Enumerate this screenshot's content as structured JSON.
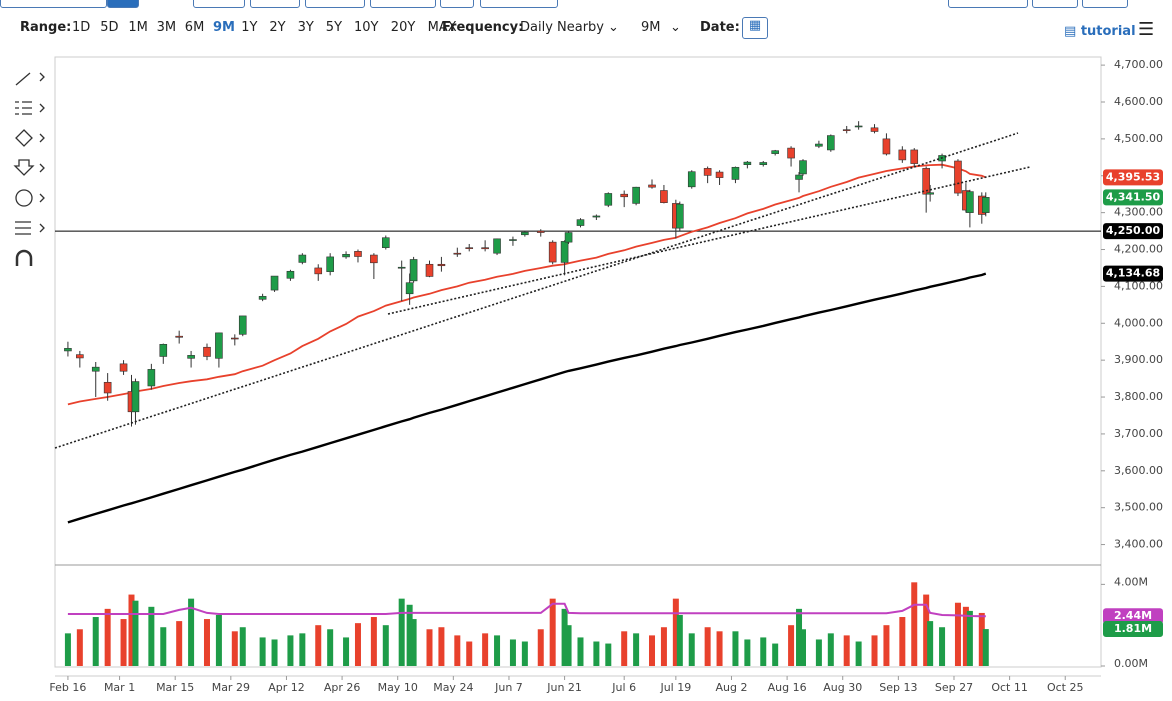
{
  "toolbar": {
    "range_label": "Range:",
    "ranges": [
      "1D",
      "5D",
      "1M",
      "3M",
      "6M",
      "9M",
      "1Y",
      "2Y",
      "3Y",
      "5Y",
      "10Y",
      "20Y",
      "MAX"
    ],
    "active_range": 5,
    "frequency_label": "Frequency:",
    "frequency": "Daily Nearby",
    "period": "9M",
    "date_label": "Date:",
    "tutorial": "tutorial"
  },
  "chart_data": {
    "type": "candlestick",
    "x": [
      "Feb 16",
      "Feb 19",
      "Feb 23",
      "Feb 26",
      "Mar 2",
      "Mar 4",
      "Mar 5",
      "Mar 9",
      "Mar 12",
      "Mar 16",
      "Mar 19",
      "Mar 23",
      "Mar 26",
      "Mar 30",
      "Apr 1",
      "Apr 6",
      "Apr 9",
      "Apr 13",
      "Apr 16",
      "Apr 20",
      "Apr 23",
      "Apr 27",
      "Apr 30",
      "May 4",
      "May 7",
      "May 11",
      "May 13",
      "May 14",
      "May 18",
      "May 21",
      "May 25",
      "May 28",
      "Jun 1",
      "Jun 4",
      "Jun 8",
      "Jun 11",
      "Jun 15",
      "Jun 18",
      "Jun 21",
      "Jun 22",
      "Jun 25",
      "Jun 29",
      "Jul 2",
      "Jul 6",
      "Jul 9",
      "Jul 13",
      "Jul 16",
      "Jul 19",
      "Jul 20",
      "Jul 23",
      "Jul 27",
      "Jul 30",
      "Aug 3",
      "Aug 6",
      "Aug 10",
      "Aug 13",
      "Aug 17",
      "Aug 19",
      "Aug 20",
      "Aug 24",
      "Aug 27",
      "Aug 31",
      "Sep 3",
      "Sep 7",
      "Sep 10",
      "Sep 14",
      "Sep 17",
      "Sep 20",
      "Sep 21",
      "Sep 24",
      "Sep 28",
      "Sep 30",
      "Oct 1",
      "Oct 4",
      "Oct 5"
    ],
    "open": [
      3925,
      3915,
      3870,
      3840,
      3890,
      3815,
      3760,
      3830,
      3910,
      3965,
      3905,
      3935,
      3905,
      3960,
      3970,
      4065,
      4090,
      4122,
      4165,
      4150,
      4140,
      4180,
      4195,
      4185,
      4205,
      4150,
      4080,
      4115,
      4160,
      4160,
      4190,
      4205,
      4205,
      4190,
      4225,
      4240,
      4250,
      4220,
      4165,
      4220,
      4265,
      4288,
      4320,
      4350,
      4325,
      4375,
      4360,
      4325,
      4258,
      4370,
      4420,
      4410,
      4390,
      4430,
      4430,
      4460,
      4475,
      4390,
      4405,
      4480,
      4470,
      4525,
      4535,
      4530,
      4500,
      4470,
      4470,
      4420,
      4350,
      4440,
      4440,
      4360,
      4300,
      4345,
      4300
    ],
    "high": [
      3950,
      3925,
      3895,
      3865,
      3900,
      3860,
      3850,
      3890,
      3945,
      3980,
      3925,
      3945,
      3975,
      3970,
      4020,
      4080,
      4128,
      4145,
      4190,
      4160,
      4190,
      4195,
      4200,
      4190,
      4238,
      4170,
      4135,
      4180,
      4170,
      4180,
      4205,
      4215,
      4225,
      4230,
      4235,
      4250,
      4255,
      4225,
      4225,
      4250,
      4285,
      4295,
      4355,
      4360,
      4370,
      4390,
      4375,
      4335,
      4330,
      4415,
      4425,
      4415,
      4425,
      4440,
      4440,
      4470,
      4480,
      4410,
      4445,
      4495,
      4512,
      4535,
      4548,
      4540,
      4515,
      4480,
      4475,
      4425,
      4375,
      4460,
      4445,
      4380,
      4362,
      4355,
      4355
    ],
    "low": [
      3910,
      3880,
      3800,
      3790,
      3860,
      3720,
      3725,
      3820,
      3890,
      3945,
      3880,
      3900,
      3880,
      3940,
      3965,
      4060,
      4085,
      4115,
      4160,
      4115,
      4130,
      4175,
      4165,
      4120,
      4200,
      4060,
      4050,
      4110,
      4125,
      4140,
      4180,
      4195,
      4195,
      4185,
      4210,
      4235,
      4235,
      4160,
      4130,
      4215,
      4260,
      4280,
      4315,
      4315,
      4320,
      4365,
      4325,
      4230,
      4250,
      4365,
      4380,
      4375,
      4380,
      4420,
      4425,
      4455,
      4425,
      4355,
      4400,
      4475,
      4465,
      4515,
      4525,
      4515,
      4455,
      4435,
      4425,
      4300,
      4330,
      4420,
      4345,
      4300,
      4260,
      4270,
      4290
    ],
    "close": [
      3932,
      3906,
      3881,
      3811,
      3870,
      3760,
      3842,
      3875,
      3943,
      3962,
      3913,
      3910,
      3974,
      3958,
      4020,
      4073,
      4128,
      4141,
      4185,
      4134,
      4180,
      4187,
      4181,
      4164,
      4232,
      4152,
      4110,
      4173,
      4127,
      4156,
      4188,
      4204,
      4202,
      4229,
      4227,
      4247,
      4246,
      4166,
      4222,
      4246,
      4281,
      4291,
      4352,
      4343,
      4369,
      4369,
      4327,
      4258,
      4323,
      4411,
      4401,
      4395,
      4423,
      4437,
      4436,
      4468,
      4448,
      4402,
      4441,
      4486,
      4509,
      4523,
      4535,
      4520,
      4459,
      4443,
      4433,
      4350,
      4354,
      4455,
      4353,
      4307,
      4357,
      4295,
      4341.5
    ],
    "close_last_label": "4,341.50",
    "up_color": "#1e9c48",
    "down_color": "#e8412c",
    "series": [
      {
        "color": "#e8412c",
        "last_label": "4,395.53",
        "values": [
          3780,
          3788,
          3795,
          3800,
          3808,
          3812,
          3815,
          3822,
          3830,
          3838,
          3843,
          3848,
          3855,
          3862,
          3870,
          3885,
          3900,
          3918,
          3938,
          3958,
          3978,
          3998,
          4018,
          4033,
          4048,
          4060,
          4066,
          4070,
          4080,
          4090,
          4100,
          4110,
          4118,
          4126,
          4134,
          4142,
          4150,
          4156,
          4160,
          4163,
          4170,
          4178,
          4188,
          4198,
          4208,
          4218,
          4226,
          4232,
          4236,
          4248,
          4260,
          4272,
          4285,
          4298,
          4310,
          4322,
          4334,
          4340,
          4345,
          4358,
          4370,
          4383,
          4395,
          4405,
          4413,
          4420,
          4425,
          4428,
          4429,
          4430,
          4420,
          4412,
          4405,
          4400,
          4395.53
        ]
      },
      {
        "color": "#000000",
        "last_label": "4,134.68",
        "values": [
          3460,
          3470,
          3483,
          3493,
          3506,
          3512,
          3515,
          3528,
          3538,
          3551,
          3561,
          3574,
          3584,
          3597,
          3603,
          3620,
          3630,
          3643,
          3652,
          3665,
          3675,
          3688,
          3698,
          3711,
          3721,
          3734,
          3740,
          3744,
          3757,
          3766,
          3779,
          3789,
          3802,
          3812,
          3825,
          3835,
          3848,
          3858,
          3868,
          3871,
          3878,
          3888,
          3896,
          3906,
          3913,
          3923,
          3931,
          3938,
          3941,
          3948,
          3958,
          3966,
          3976,
          3983,
          3993,
          4001,
          4011,
          4016,
          4019,
          4029,
          4036,
          4046,
          4054,
          4064,
          4071,
          4081,
          4089,
          4096,
          4099,
          4106,
          4116,
          4121,
          4124,
          4131,
          4134.68
        ]
      }
    ],
    "hline": {
      "value": 4250,
      "label": "4,250.00"
    },
    "ylim": [
      3350,
      4722
    ],
    "yticks": [
      {
        "value": 3400,
        "label": "3,400.00"
      },
      {
        "value": 3500,
        "label": "3,500.00"
      },
      {
        "value": 3600,
        "label": "3,600.00"
      },
      {
        "value": 3700,
        "label": "3,700.00"
      },
      {
        "value": 3800,
        "label": "3,800.00"
      },
      {
        "value": 3900,
        "label": "3,900.00"
      },
      {
        "value": 4000,
        "label": "4,000.00"
      },
      {
        "value": 4100,
        "label": "4,100.00"
      },
      {
        "value": 4200,
        "label": "4,200.00"
      },
      {
        "value": 4300,
        "label": "4,300.00"
      },
      {
        "value": 4400,
        "label": "4,400.00"
      },
      {
        "value": 4500,
        "label": "4,500.00"
      },
      {
        "value": 4600,
        "label": "4,600.00"
      },
      {
        "value": 4700,
        "label": "4,700.00"
      }
    ],
    "xlim": [
      "Feb 13",
      "Nov 3"
    ],
    "xticks": [
      "Feb 16",
      "Mar 1",
      "Mar 15",
      "Mar 29",
      "Apr 12",
      "Apr 26",
      "May 10",
      "May 24",
      "Jun 7",
      "Jun 21",
      "Jul 6",
      "Jul 19",
      "Aug 2",
      "Aug 16",
      "Aug 30",
      "Sep 13",
      "Sep 27",
      "Oct 11",
      "Oct 25"
    ],
    "volume": {
      "values": [
        1600000,
        1800000,
        2400000,
        2800000,
        2300000,
        3500000,
        3200000,
        2900000,
        1900000,
        2200000,
        3300000,
        2300000,
        2500000,
        1700000,
        1900000,
        1400000,
        1300000,
        1500000,
        1600000,
        2000000,
        1800000,
        1400000,
        2100000,
        2400000,
        2000000,
        3300000,
        3000000,
        2300000,
        1800000,
        1900000,
        1500000,
        1200000,
        1600000,
        1500000,
        1300000,
        1200000,
        1800000,
        3300000,
        2800000,
        2000000,
        1400000,
        1200000,
        1100000,
        1700000,
        1600000,
        1500000,
        1900000,
        3300000,
        2500000,
        1600000,
        1900000,
        1700000,
        1700000,
        1300000,
        1400000,
        1100000,
        2000000,
        2800000,
        1800000,
        1300000,
        1600000,
        1500000,
        1200000,
        1500000,
        2000000,
        2400000,
        4100000,
        3500000,
        2200000,
        1900000,
        3100000,
        2900000,
        2700000,
        2600000,
        1810000
      ],
      "last_label": "1.81M",
      "ylim": [
        0,
        4900000
      ],
      "yticks": [
        {
          "value": 0,
          "label": "0.00M"
        },
        {
          "value": 4000000,
          "label": "4.00M"
        }
      ],
      "ma": {
        "color": "#c040c0",
        "last_label": "2.44M",
        "values": [
          2550000,
          2550000,
          2550000,
          2550000,
          2550000,
          2550000,
          2550000,
          2550000,
          2550000,
          2750000,
          2850000,
          2600000,
          2550000,
          2550000,
          2550000,
          2550000,
          2550000,
          2550000,
          2550000,
          2550000,
          2550000,
          2550000,
          2550000,
          2550000,
          2550000,
          2600000,
          2600000,
          2600000,
          2600000,
          2600000,
          2600000,
          2600000,
          2600000,
          2600000,
          2600000,
          2600000,
          2600000,
          3050000,
          3050000,
          2600000,
          2580000,
          2580000,
          2580000,
          2580000,
          2580000,
          2580000,
          2580000,
          2580000,
          2580000,
          2580000,
          2580000,
          2580000,
          2580000,
          2580000,
          2580000,
          2580000,
          2580000,
          2580000,
          2580000,
          2580000,
          2580000,
          2580000,
          2580000,
          2580000,
          2580000,
          2700000,
          3000000,
          3000000,
          2600000,
          2500000,
          2480000,
          2460000,
          2450000,
          2440000,
          2440000
        ]
      }
    }
  }
}
